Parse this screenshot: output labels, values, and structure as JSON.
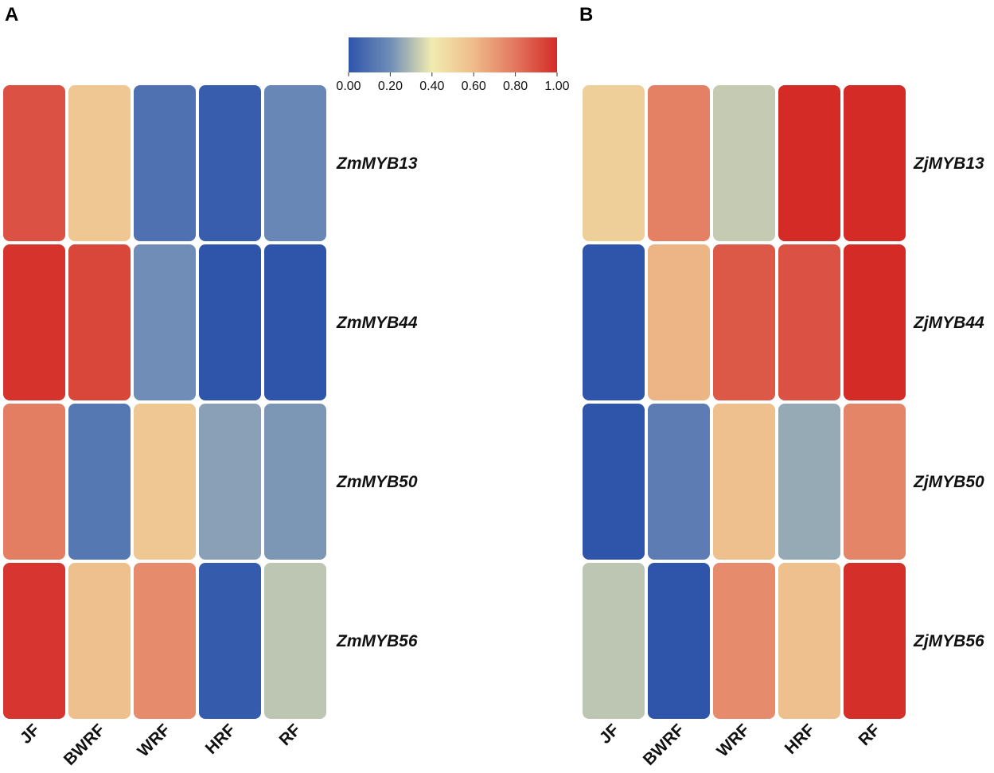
{
  "chart_data": [
    {
      "type": "heatmap",
      "panel_label": "A",
      "columns": [
        "JF",
        "BWRF",
        "WRF",
        "HRF",
        "RF"
      ],
      "rows": [
        "ZmMYB13",
        "ZmMYB44",
        "ZmMYB50",
        "ZmMYB56"
      ],
      "values": [
        [
          0.9,
          0.55,
          0.1,
          0.03,
          0.18
        ],
        [
          0.98,
          0.93,
          0.2,
          0.0,
          0.0
        ],
        [
          0.78,
          0.12,
          0.55,
          0.24,
          0.22
        ],
        [
          0.97,
          0.58,
          0.74,
          0.02,
          0.32
        ]
      ],
      "colorbar_range": [
        0,
        1
      ]
    },
    {
      "type": "heatmap",
      "panel_label": "B",
      "columns": [
        "JF",
        "BWRF",
        "WRF",
        "HRF",
        "RF"
      ],
      "rows": [
        "ZjMYB13",
        "ZjMYB44",
        "ZjMYB50",
        "ZjMYB56"
      ],
      "values": [
        [
          0.52,
          0.77,
          0.33,
          1.0,
          1.0
        ],
        [
          0.0,
          0.62,
          0.88,
          0.9,
          1.0
        ],
        [
          0.0,
          0.14,
          0.58,
          0.26,
          0.76
        ],
        [
          0.32,
          0.0,
          0.74,
          0.58,
          0.99
        ]
      ],
      "colorbar_range": [
        0,
        1
      ]
    }
  ],
  "colorbar": {
    "ticks": [
      "0.00",
      "0.20",
      "0.40",
      "0.60",
      "0.80",
      "1.00"
    ],
    "stops": [
      {
        "pos": 0.0,
        "color": "#2f55ab"
      },
      {
        "pos": 0.2,
        "color": "#6f8db7"
      },
      {
        "pos": 0.4,
        "color": "#f1ecb0"
      },
      {
        "pos": 0.6,
        "color": "#eebb89"
      },
      {
        "pos": 0.8,
        "color": "#e2775f"
      },
      {
        "pos": 1.0,
        "color": "#d42b26"
      }
    ]
  }
}
